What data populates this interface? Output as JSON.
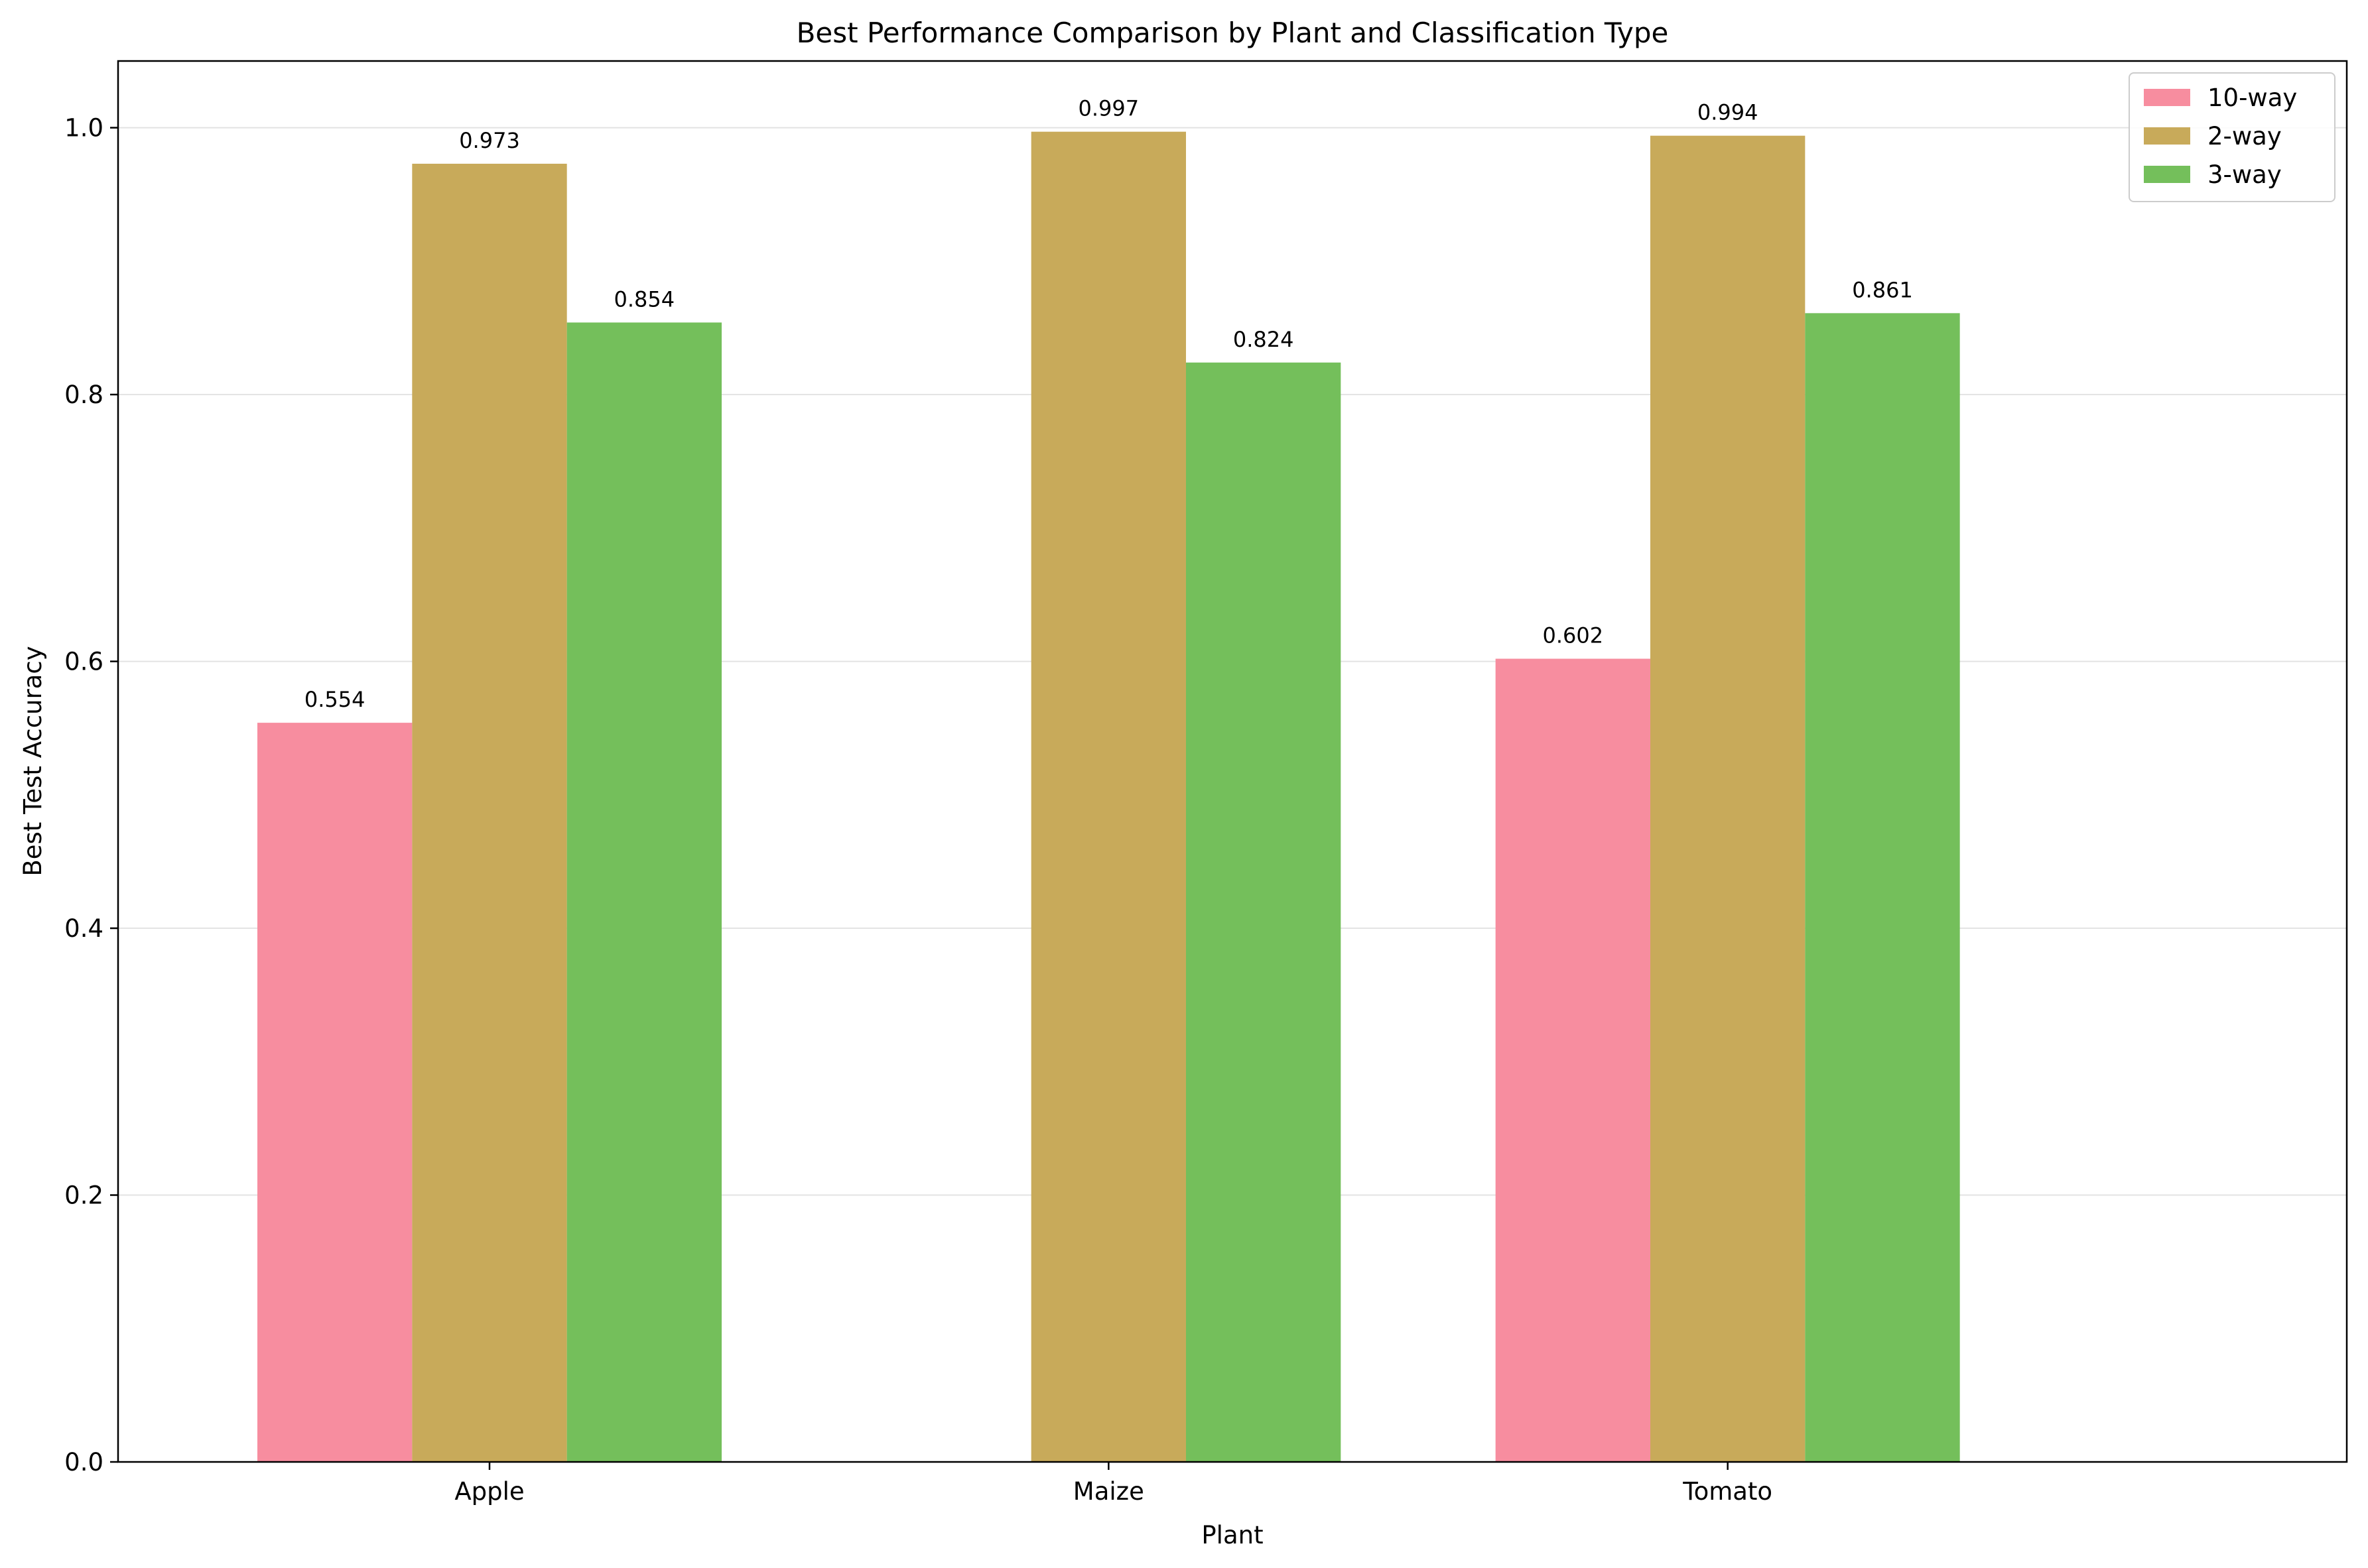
{
  "chart_data": {
    "type": "bar",
    "title": "Best Performance Comparison by Plant and Classification Type",
    "xlabel": "Plant",
    "ylabel": "Best Test Accuracy",
    "categories": [
      "Apple",
      "Maize",
      "Tomato"
    ],
    "series": [
      {
        "name": "10-way",
        "color": "#f78d9f",
        "values": [
          0.554,
          null,
          0.602
        ],
        "labels": [
          "0.554",
          "",
          "0.602"
        ]
      },
      {
        "name": "2-way",
        "color": "#c8aa5a",
        "values": [
          0.973,
          0.997,
          0.994
        ],
        "labels": [
          "0.973",
          "0.997",
          "0.994"
        ]
      },
      {
        "name": "3-way",
        "color": "#74bf5b",
        "values": [
          0.854,
          0.824,
          0.861
        ],
        "labels": [
          "0.854",
          "0.824",
          "0.861"
        ]
      }
    ],
    "ylim": [
      0,
      1.05
    ],
    "yticks": [
      0.0,
      0.2,
      0.4,
      0.6,
      0.8,
      1.0
    ],
    "ytick_labels": [
      "0.0",
      "0.2",
      "0.4",
      "0.6",
      "0.8",
      "1.0"
    ],
    "grid": "y",
    "legend_position": "top-right"
  }
}
